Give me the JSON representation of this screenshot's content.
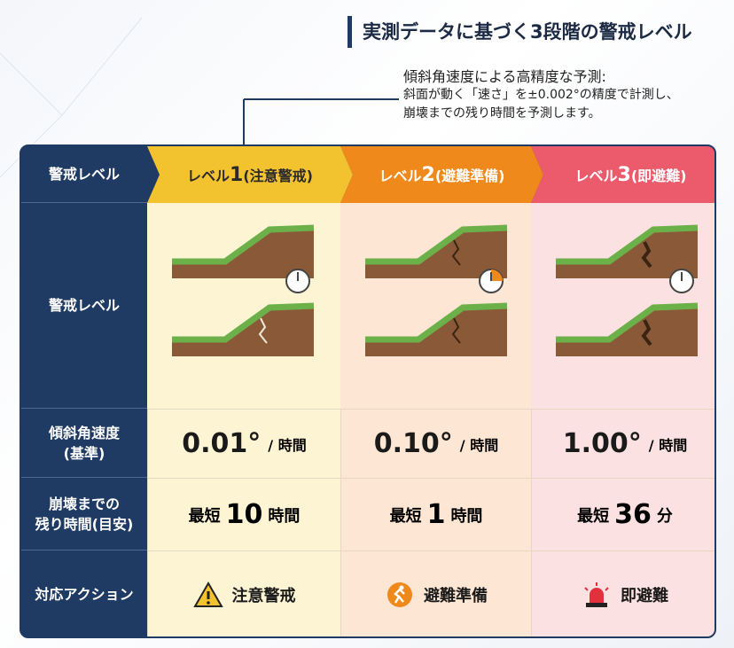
{
  "header": {
    "title": "実測データに基づく3段階の警戒レベル"
  },
  "note": {
    "title": "傾斜角速度による高精度な予測:",
    "lines": [
      "斜面が動く「速さ」を±0.002°の精度で計測し、",
      "崩壊までの残り時間を予測します。"
    ]
  },
  "table": {
    "row_labels": [
      [
        "警戒レベル"
      ],
      [
        "警戒レベル"
      ],
      [
        "傾斜角速度",
        "(基準)"
      ],
      [
        "崩壊までの",
        "残り時間(目安)"
      ],
      [
        "対応アクション"
      ]
    ],
    "levels": [
      {
        "prefix": "レベル",
        "number": "1",
        "name": "(注意警戒)",
        "rate": "0.01°",
        "rate_unit": "/ 時間",
        "time_prefix": "最短",
        "time_value": "10",
        "time_unit": "時間",
        "action": "注意警戒"
      },
      {
        "prefix": "レベル",
        "number": "2",
        "name": "(避難準備)",
        "rate": "0.10°",
        "rate_unit": "/ 時間",
        "time_prefix": "最短",
        "time_value": "1",
        "time_unit": "時間",
        "action": "避難準備"
      },
      {
        "prefix": "レベル",
        "number": "3",
        "name": "(即避難)",
        "rate": "1.00°",
        "rate_unit": "/ 時間",
        "time_prefix": "最短",
        "time_value": "36",
        "time_unit": "分",
        "action": "即避難"
      }
    ]
  }
}
